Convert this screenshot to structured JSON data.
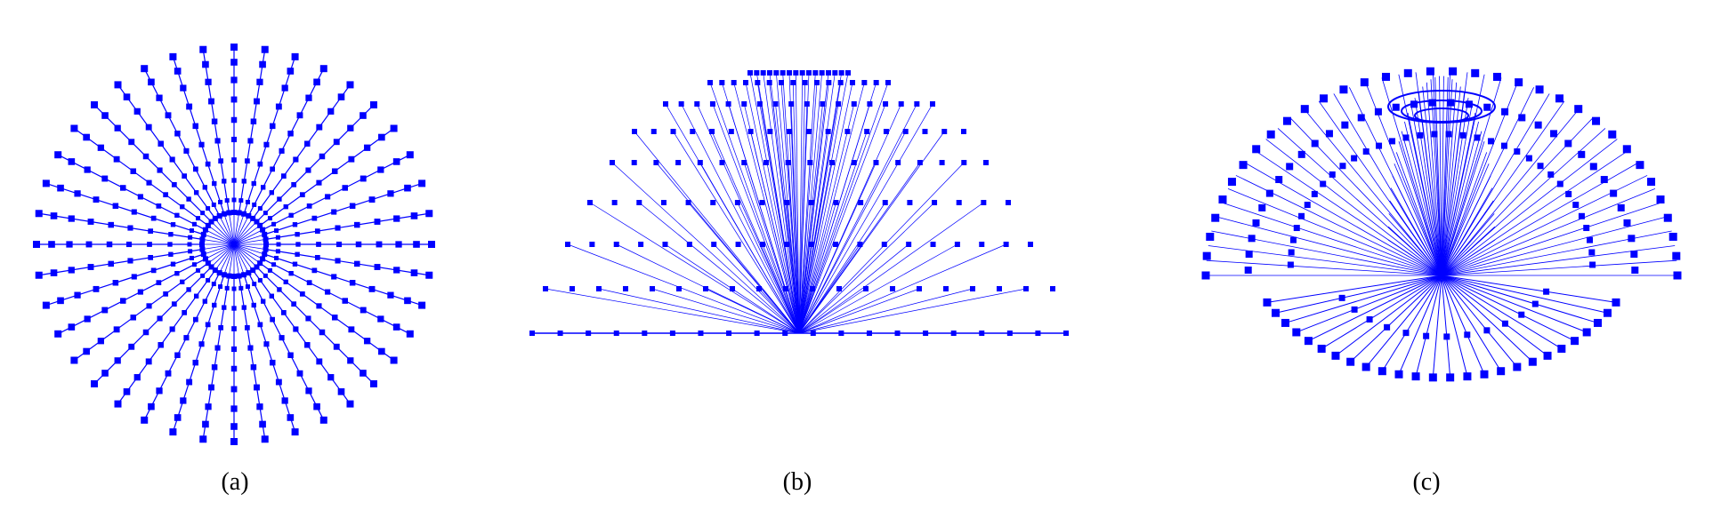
{
  "colors": {
    "figure": "#0000ff",
    "background": "#ffffff",
    "caption": "#000000"
  },
  "panels": [
    {
      "id": "a",
      "caption": "(a)"
    },
    {
      "id": "b",
      "caption": "(b)"
    },
    {
      "id": "c",
      "caption": "(c)"
    }
  ]
}
